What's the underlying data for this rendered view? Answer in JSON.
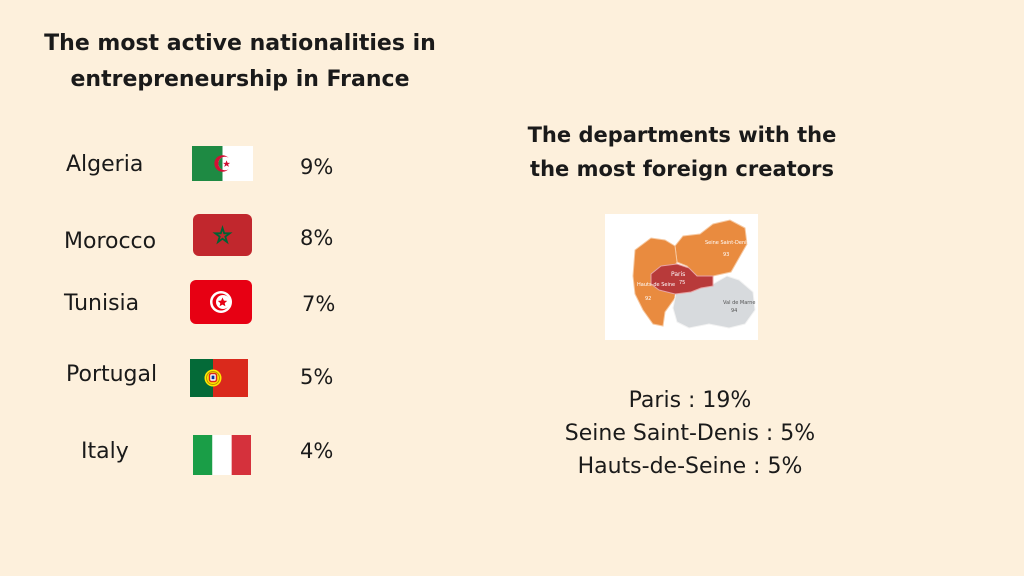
{
  "left_title_line1": "The most active nationalities in",
  "left_title_line2": "entrepreneurship in France",
  "right_title_line1": "The departments with the",
  "right_title_line2": "the most foreign creators",
  "nationalities": [
    {
      "country": "Algeria",
      "percent": "9%",
      "flag_icon": "algeria-flag-icon"
    },
    {
      "country": "Morocco",
      "percent": "8%",
      "flag_icon": "morocco-flag-icon"
    },
    {
      "country": "Tunisia",
      "percent": "7%",
      "flag_icon": "tunisia-flag-icon"
    },
    {
      "country": "Portugal",
      "percent": "5%",
      "flag_icon": "portugal-flag-icon"
    },
    {
      "country": "Italy",
      "percent": "4%",
      "flag_icon": "italy-flag-icon"
    }
  ],
  "map_labels": {
    "paris": "Paris",
    "paris_code": "75",
    "seine_saint_denis": "Seine Saint-Denis",
    "seine_saint_denis_code": "93",
    "hauts_de_seine": "Hauts-de Seine",
    "hauts_de_seine_code": "92",
    "val_de_marne": "Val de Marne",
    "val_de_marne_code": "94"
  },
  "department_stats": [
    "Paris : 19%",
    "Seine Saint-Denis : 5%",
    "Hauts-de-Seine : 5%"
  ],
  "colors": {
    "background": "#fdf0dc",
    "map_orange": "#e98b3f",
    "map_red": "#b83a3a",
    "map_gray": "#d7dadd"
  }
}
